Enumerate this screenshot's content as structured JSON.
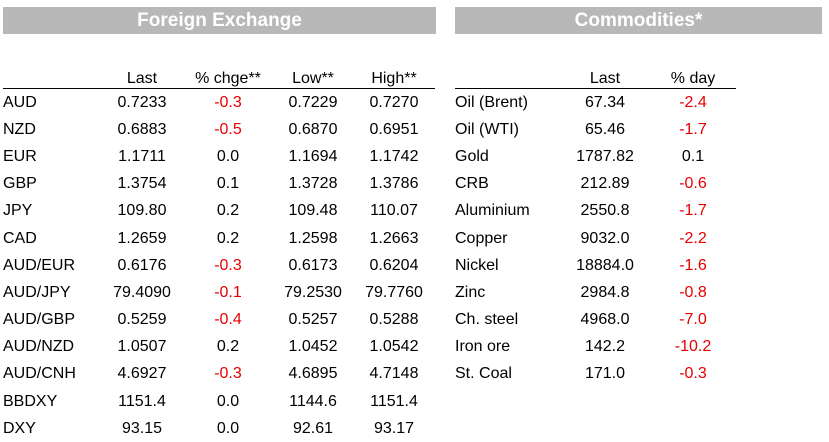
{
  "fx": {
    "title": "Foreign Exchange",
    "columns": [
      "",
      "Last",
      "% chge**",
      "Low**",
      "High**"
    ],
    "rows": [
      [
        "AUD",
        "0.7233",
        "-0.3",
        "0.7229",
        "0.7270"
      ],
      [
        "NZD",
        "0.6883",
        "-0.5",
        "0.6870",
        "0.6951"
      ],
      [
        "EUR",
        "1.1711",
        "0.0",
        "1.1694",
        "1.1742"
      ],
      [
        "GBP",
        "1.3754",
        "0.1",
        "1.3728",
        "1.3786"
      ],
      [
        "JPY",
        "109.80",
        "0.2",
        "109.48",
        "110.07"
      ],
      [
        "CAD",
        "1.2659",
        "0.2",
        "1.2598",
        "1.2663"
      ],
      [
        "AUD/EUR",
        "0.6176",
        "-0.3",
        "0.6173",
        "0.6204"
      ],
      [
        "AUD/JPY",
        "79.4090",
        "-0.1",
        "79.2530",
        "79.7760"
      ],
      [
        "AUD/GBP",
        "0.5259",
        "-0.4",
        "0.5257",
        "0.5288"
      ],
      [
        "AUD/NZD",
        "1.0507",
        "0.2",
        "1.0452",
        "1.0542"
      ],
      [
        "AUD/CNH",
        "4.6927",
        "-0.3",
        "4.6895",
        "4.7148"
      ],
      [
        "BBDXY",
        "1151.4",
        "0.0",
        "1144.6",
        "1151.4"
      ],
      [
        "DXY",
        "93.15",
        "0.0",
        "92.61",
        "93.17"
      ]
    ]
  },
  "commodities": {
    "title": "Commodities*",
    "columns": [
      "",
      "Last",
      "% day"
    ],
    "rows": [
      [
        "Oil (Brent)",
        "67.34",
        "-2.4"
      ],
      [
        "Oil (WTI)",
        "65.46",
        "-1.7"
      ],
      [
        "Gold",
        "1787.82",
        "0.1"
      ],
      [
        "CRB",
        "212.89",
        "-0.6"
      ],
      [
        "Aluminium",
        "2550.8",
        "-1.7"
      ],
      [
        "Copper",
        "9032.0",
        "-2.2"
      ],
      [
        "Nickel",
        "18884.0",
        "-1.6"
      ],
      [
        "Zinc",
        "2984.8",
        "-0.8"
      ],
      [
        "Ch. steel",
        "4968.0",
        "-7.0"
      ],
      [
        "Iron ore",
        "142.2",
        "-10.2"
      ],
      [
        "St. Coal",
        "171.0",
        "-0.3"
      ]
    ]
  },
  "colors": {
    "banner": "#b8b8b8",
    "negative": "#e60000"
  }
}
